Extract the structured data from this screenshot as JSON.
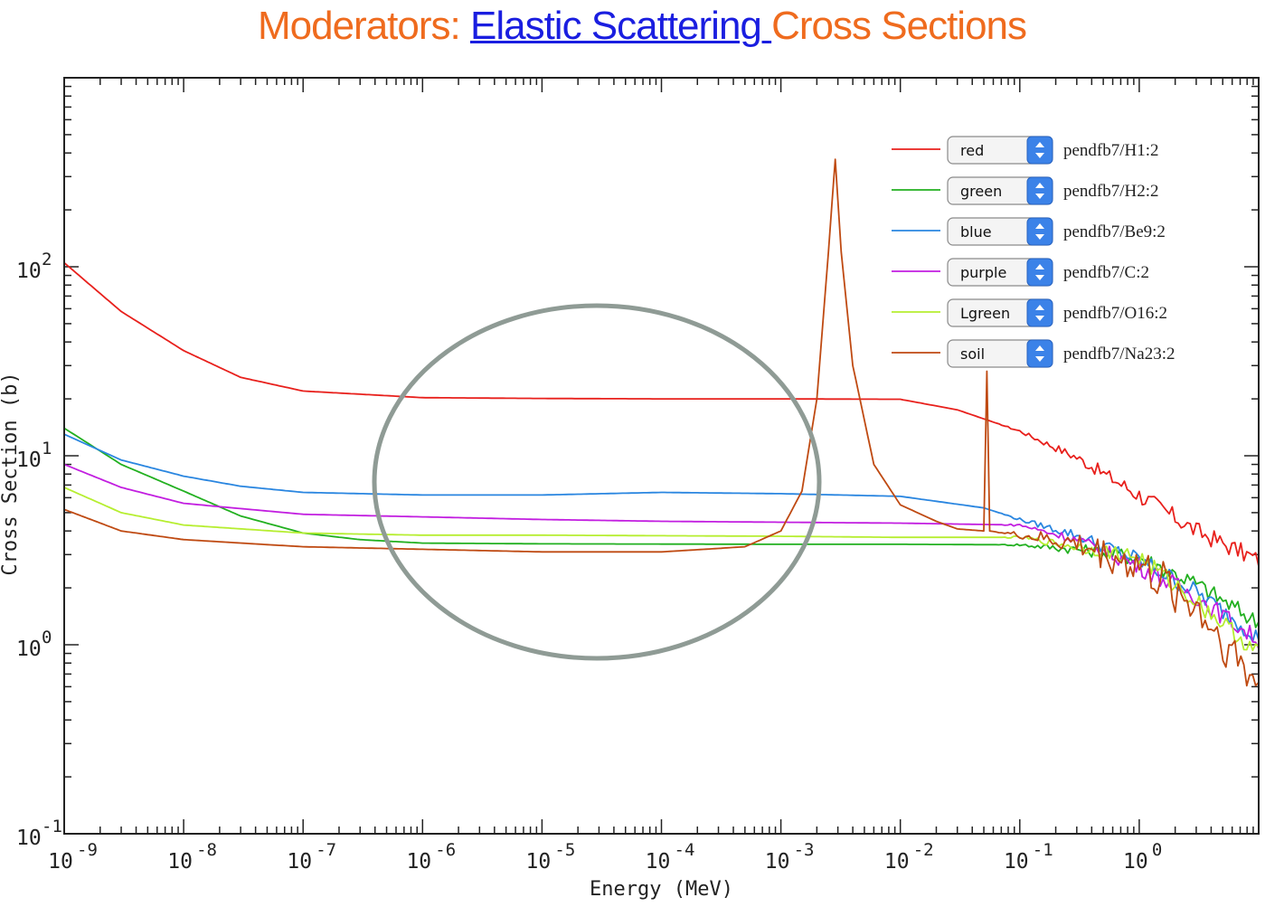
{
  "title": {
    "part1": "Moderators: ",
    "part2": "Elastic Scattering ",
    "part3": "Cross Sections"
  },
  "colors": {
    "title_orange": "#ef6b1e",
    "title_blue": "#1a1ee0",
    "circle": "#8f9b95"
  },
  "chart_data": {
    "type": "line",
    "xscale": "log",
    "yscale": "log",
    "xlabel": "Energy (MeV)",
    "ylabel": "Cross Section (b)",
    "xlim": [
      1e-09,
      10
    ],
    "ylim": [
      0.1,
      1000
    ],
    "x_ticks": [
      {
        "base": "10",
        "exp": "-9"
      },
      {
        "base": "10",
        "exp": "-8"
      },
      {
        "base": "10",
        "exp": "-7"
      },
      {
        "base": "10",
        "exp": "-6"
      },
      {
        "base": "10",
        "exp": "-5"
      },
      {
        "base": "10",
        "exp": "-4"
      },
      {
        "base": "10",
        "exp": "-3"
      },
      {
        "base": "10",
        "exp": "-2"
      },
      {
        "base": "10",
        "exp": "-1"
      },
      {
        "base": "10",
        "exp": "0"
      }
    ],
    "y_ticks": [
      {
        "base": "10",
        "exp": "-1"
      },
      {
        "base": "10",
        "exp": "0"
      },
      {
        "base": "10",
        "exp": "1"
      },
      {
        "base": "10",
        "exp": "2"
      }
    ],
    "legend_position": "top-right",
    "series": [
      {
        "name": "pendfb7/H1:2",
        "color_label": "red",
        "color": "#e8201c",
        "points": [
          [
            1e-09,
            105
          ],
          [
            3e-09,
            58
          ],
          [
            1e-08,
            36
          ],
          [
            3e-08,
            26
          ],
          [
            1e-07,
            22
          ],
          [
            1e-06,
            20.3
          ],
          [
            1e-05,
            20.1
          ],
          [
            0.0001,
            20.0
          ],
          [
            0.001,
            20.0
          ],
          [
            0.01,
            19.9
          ],
          [
            0.03,
            17.5
          ],
          [
            0.1,
            13.5
          ],
          [
            0.3,
            9.8
          ],
          [
            1,
            6.2
          ],
          [
            3,
            4.0
          ],
          [
            10,
            2.8
          ]
        ]
      },
      {
        "name": "pendfb7/H2:2",
        "color_label": "green",
        "color": "#22b020",
        "points": [
          [
            1e-09,
            14
          ],
          [
            3e-09,
            9
          ],
          [
            1e-08,
            6.5
          ],
          [
            3e-08,
            4.8
          ],
          [
            1e-07,
            3.9
          ],
          [
            3e-07,
            3.6
          ],
          [
            1e-06,
            3.45
          ],
          [
            1e-05,
            3.42
          ],
          [
            0.001,
            3.4
          ],
          [
            0.01,
            3.4
          ],
          [
            0.1,
            3.38
          ],
          [
            0.3,
            3.2
          ],
          [
            1,
            2.9
          ],
          [
            3,
            2.1
          ],
          [
            10,
            1.3
          ]
        ]
      },
      {
        "name": "pendfb7/Be9:2",
        "color_label": "blue",
        "color": "#2a86e0",
        "points": [
          [
            1e-09,
            13
          ],
          [
            3e-09,
            9.5
          ],
          [
            1e-08,
            7.8
          ],
          [
            3e-08,
            6.9
          ],
          [
            1e-07,
            6.4
          ],
          [
            1e-06,
            6.2
          ],
          [
            1e-05,
            6.2
          ],
          [
            0.0001,
            6.4
          ],
          [
            0.001,
            6.3
          ],
          [
            0.01,
            6.1
          ],
          [
            0.05,
            5.3
          ],
          [
            0.1,
            4.6
          ],
          [
            0.3,
            3.8
          ],
          [
            1,
            2.8
          ],
          [
            3,
            1.9
          ],
          [
            10,
            1.1
          ]
        ]
      },
      {
        "name": "pendfb7/C:2",
        "color_label": "purple",
        "color": "#c21ee0",
        "points": [
          [
            1e-09,
            9
          ],
          [
            3e-09,
            6.8
          ],
          [
            1e-08,
            5.6
          ],
          [
            1e-07,
            4.9
          ],
          [
            1e-06,
            4.75
          ],
          [
            1e-05,
            4.6
          ],
          [
            0.0001,
            4.5
          ],
          [
            0.001,
            4.45
          ],
          [
            0.01,
            4.4
          ],
          [
            0.1,
            4.3
          ],
          [
            0.3,
            3.6
          ],
          [
            1,
            2.6
          ],
          [
            3,
            1.8
          ],
          [
            10,
            1.05
          ]
        ]
      },
      {
        "name": "pendfb7/O16:2",
        "color_label": "Lgreen",
        "color": "#b6ee30",
        "points": [
          [
            1e-09,
            6.8
          ],
          [
            3e-09,
            5.0
          ],
          [
            1e-08,
            4.3
          ],
          [
            1e-07,
            3.9
          ],
          [
            1e-06,
            3.8
          ],
          [
            1e-05,
            3.8
          ],
          [
            0.001,
            3.75
          ],
          [
            0.01,
            3.7
          ],
          [
            0.1,
            3.7
          ],
          [
            0.3,
            3.3
          ],
          [
            1,
            2.9
          ],
          [
            3,
            1.7
          ],
          [
            10,
            0.9
          ]
        ]
      },
      {
        "name": "pendfb7/Na23:2",
        "color_label": "soil",
        "color": "#bf4a12",
        "points": [
          [
            1e-09,
            5.2
          ],
          [
            3e-09,
            4.0
          ],
          [
            1e-08,
            3.6
          ],
          [
            1e-07,
            3.3
          ],
          [
            1e-06,
            3.2
          ],
          [
            1e-05,
            3.1
          ],
          [
            0.0001,
            3.1
          ],
          [
            0.0005,
            3.3
          ],
          [
            0.001,
            4.0
          ],
          [
            0.0015,
            6.5
          ],
          [
            0.002,
            20
          ],
          [
            0.0025,
            120
          ],
          [
            0.00285,
            370
          ],
          [
            0.0032,
            120
          ],
          [
            0.004,
            30
          ],
          [
            0.006,
            9
          ],
          [
            0.01,
            5.5
          ],
          [
            0.02,
            4.5
          ],
          [
            0.03,
            4.1
          ],
          [
            0.05,
            4.0
          ],
          [
            0.053,
            28
          ],
          [
            0.056,
            4.0
          ],
          [
            0.1,
            3.8
          ],
          [
            0.3,
            3.4
          ],
          [
            1,
            2.6
          ],
          [
            3,
            1.6
          ],
          [
            10,
            0.6
          ]
        ]
      }
    ],
    "annotation": "gray ellipse highlighting the flat 1e-6 to 1e-3 MeV region"
  }
}
